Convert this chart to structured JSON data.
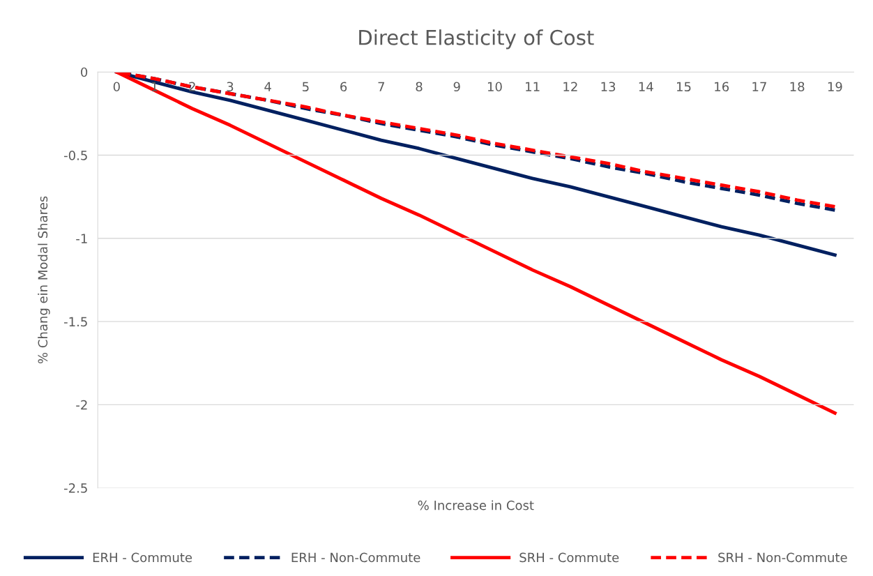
{
  "chart_data": {
    "type": "line",
    "title": "Direct Elasticity of Cost",
    "xlabel": "% Increase in Cost",
    "ylabel": "% Chang ein Modal Shares",
    "categories": [
      "0",
      "1",
      "2",
      "3",
      "4",
      "5",
      "6",
      "7",
      "8",
      "9",
      "10",
      "11",
      "12",
      "13",
      "14",
      "15",
      "16",
      "17",
      "18",
      "19"
    ],
    "series": [
      {
        "name": "ERH - Commute",
        "color": "#002060",
        "line_style": "solid",
        "values": [
          0,
          -0.06,
          -0.12,
          -0.17,
          -0.23,
          -0.29,
          -0.35,
          -0.41,
          -0.46,
          -0.52,
          -0.58,
          -0.64,
          -0.69,
          -0.75,
          -0.81,
          -0.87,
          -0.93,
          -0.98,
          -1.04,
          -1.1
        ]
      },
      {
        "name": "ERH - Non-Commute",
        "color": "#002060",
        "line_style": "dashed",
        "values": [
          0,
          -0.04,
          -0.09,
          -0.13,
          -0.17,
          -0.22,
          -0.26,
          -0.31,
          -0.35,
          -0.39,
          -0.44,
          -0.48,
          -0.52,
          -0.57,
          -0.61,
          -0.66,
          -0.7,
          -0.74,
          -0.79,
          -0.83
        ]
      },
      {
        "name": "SRH - Commute",
        "color": "#ff0000",
        "line_style": "solid",
        "values": [
          0,
          -0.11,
          -0.22,
          -0.32,
          -0.43,
          -0.54,
          -0.65,
          -0.76,
          -0.86,
          -0.97,
          -1.08,
          -1.19,
          -1.29,
          -1.4,
          -1.51,
          -1.62,
          -1.73,
          -1.83,
          -1.94,
          -2.05
        ]
      },
      {
        "name": "SRH - Non-Commute",
        "color": "#ff0000",
        "line_style": "dashed",
        "values": [
          0,
          -0.04,
          -0.09,
          -0.13,
          -0.17,
          -0.21,
          -0.26,
          -0.3,
          -0.34,
          -0.38,
          -0.43,
          -0.47,
          -0.51,
          -0.55,
          -0.6,
          -0.64,
          -0.68,
          -0.72,
          -0.77,
          -0.81
        ]
      }
    ],
    "ylim": [
      -2.5,
      0
    ],
    "yticks": [
      -2.5,
      -2,
      -1.5,
      -1,
      -0.5,
      0
    ],
    "grid": "y",
    "legend": "bottom",
    "marker": "none"
  }
}
